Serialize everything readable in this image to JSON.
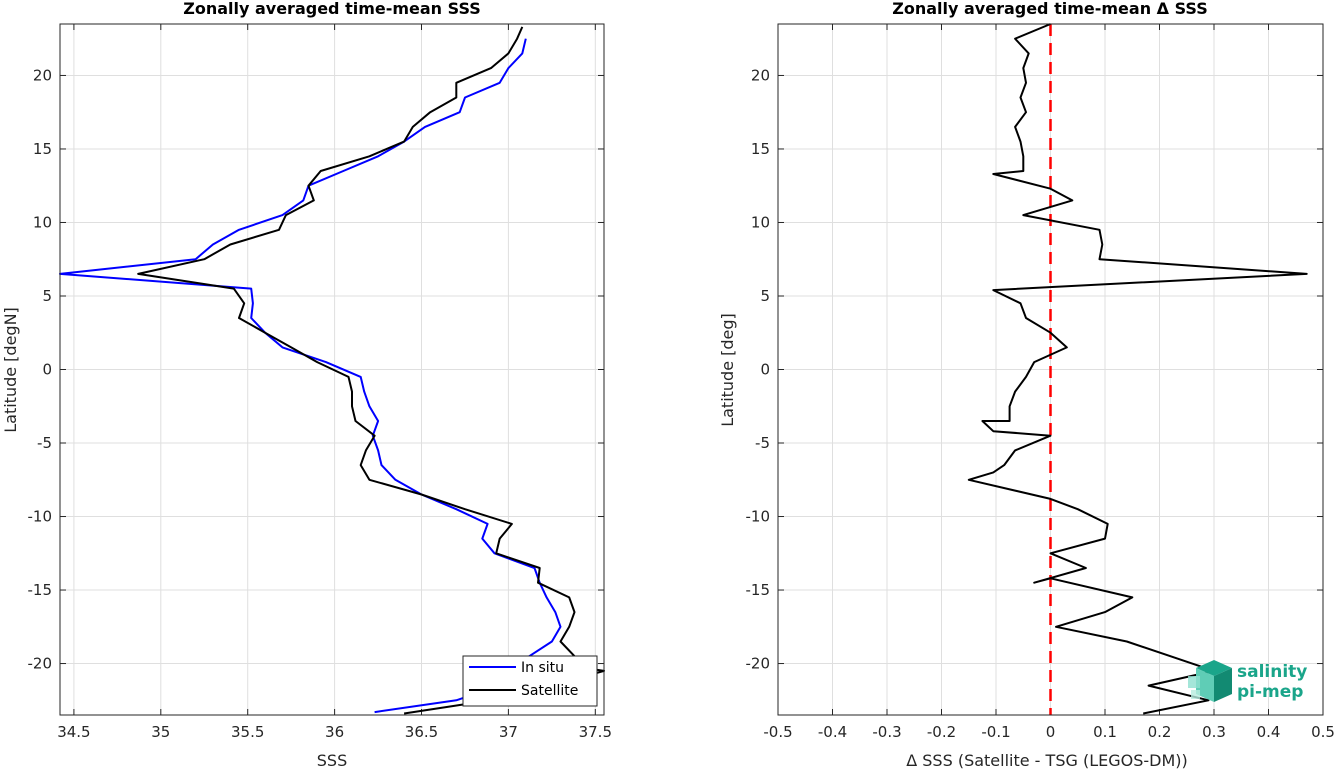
{
  "chart_data": [
    {
      "type": "line",
      "title": "Zonally averaged time-mean SSS",
      "xlabel": "SSS",
      "ylabel": "Latitude [degN]",
      "xlim": [
        34.42,
        37.55
      ],
      "ylim": [
        -23.5,
        23.5
      ],
      "xticks": [
        34.5,
        35,
        35.5,
        36,
        36.5,
        37,
        37.5
      ],
      "xtick_labels": [
        "34.5",
        "35",
        "35.5",
        "36",
        "36.5",
        "37",
        "37.5"
      ],
      "yticks": [
        -20,
        -15,
        -10,
        -5,
        0,
        5,
        10,
        15,
        20
      ],
      "ytick_labels": [
        "-20",
        "-15",
        "-10",
        "-5",
        "0",
        "5",
        "10",
        "15",
        "20"
      ],
      "grid": true,
      "legend_position": "bottom-right",
      "series": [
        {
          "name": "In situ",
          "color": "#0000ff",
          "points": [
            [
              37.1,
              22.5
            ],
            [
              37.08,
              21.5
            ],
            [
              37.0,
              20.5
            ],
            [
              36.95,
              19.5
            ],
            [
              36.75,
              18.5
            ],
            [
              36.72,
              17.5
            ],
            [
              36.52,
              16.5
            ],
            [
              36.4,
              15.5
            ],
            [
              36.25,
              14.5
            ],
            [
              36.05,
              13.5
            ],
            [
              35.85,
              12.5
            ],
            [
              35.82,
              11.5
            ],
            [
              35.7,
              10.5
            ],
            [
              35.45,
              9.5
            ],
            [
              35.3,
              8.5
            ],
            [
              35.2,
              7.5
            ],
            [
              34.42,
              6.5
            ],
            [
              35.52,
              5.5
            ],
            [
              35.53,
              4.5
            ],
            [
              35.52,
              3.5
            ],
            [
              35.6,
              2.5
            ],
            [
              35.7,
              1.5
            ],
            [
              35.95,
              0.5
            ],
            [
              36.15,
              -0.5
            ],
            [
              36.17,
              -1.5
            ],
            [
              36.2,
              -2.5
            ],
            [
              36.25,
              -3.5
            ],
            [
              36.22,
              -4.5
            ],
            [
              36.25,
              -5.5
            ],
            [
              36.27,
              -6.5
            ],
            [
              36.35,
              -7.5
            ],
            [
              36.5,
              -8.5
            ],
            [
              36.7,
              -9.5
            ],
            [
              36.88,
              -10.5
            ],
            [
              36.85,
              -11.5
            ],
            [
              36.92,
              -12.5
            ],
            [
              37.15,
              -13.5
            ],
            [
              37.18,
              -14.5
            ],
            [
              37.22,
              -15.5
            ],
            [
              37.27,
              -16.5
            ],
            [
              37.3,
              -17.5
            ],
            [
              37.25,
              -18.5
            ],
            [
              37.12,
              -19.5
            ],
            [
              36.95,
              -20.5
            ],
            [
              36.95,
              -21.5
            ],
            [
              36.7,
              -22.5
            ],
            [
              36.23,
              -23.3
            ]
          ]
        },
        {
          "name": "Satellite",
          "color": "#000000",
          "points": [
            [
              37.08,
              23.3
            ],
            [
              37.05,
              22.5
            ],
            [
              37.0,
              21.5
            ],
            [
              36.9,
              20.5
            ],
            [
              36.7,
              19.5
            ],
            [
              36.7,
              18.5
            ],
            [
              36.55,
              17.5
            ],
            [
              36.45,
              16.5
            ],
            [
              36.4,
              15.5
            ],
            [
              36.2,
              14.5
            ],
            [
              35.92,
              13.5
            ],
            [
              35.85,
              12.5
            ],
            [
              35.88,
              11.5
            ],
            [
              35.72,
              10.5
            ],
            [
              35.68,
              9.5
            ],
            [
              35.4,
              8.5
            ],
            [
              35.25,
              7.5
            ],
            [
              34.87,
              6.5
            ],
            [
              35.42,
              5.5
            ],
            [
              35.48,
              4.5
            ],
            [
              35.45,
              3.5
            ],
            [
              35.6,
              2.5
            ],
            [
              35.75,
              1.5
            ],
            [
              35.9,
              0.5
            ],
            [
              36.08,
              -0.5
            ],
            [
              36.1,
              -1.5
            ],
            [
              36.1,
              -2.5
            ],
            [
              36.12,
              -3.5
            ],
            [
              36.23,
              -4.5
            ],
            [
              36.18,
              -5.5
            ],
            [
              36.15,
              -6.5
            ],
            [
              36.2,
              -7.5
            ],
            [
              36.5,
              -8.5
            ],
            [
              36.75,
              -9.5
            ],
            [
              37.02,
              -10.5
            ],
            [
              36.95,
              -11.5
            ],
            [
              36.93,
              -12.5
            ],
            [
              37.18,
              -13.5
            ],
            [
              37.17,
              -14.5
            ],
            [
              37.35,
              -15.5
            ],
            [
              37.38,
              -16.5
            ],
            [
              37.35,
              -17.5
            ],
            [
              37.3,
              -18.5
            ],
            [
              37.38,
              -19.5
            ],
            [
              37.38,
              -20.2
            ],
            [
              37.55,
              -20.5
            ],
            [
              37.4,
              -21.0
            ],
            [
              36.9,
              -22.5
            ],
            [
              36.4,
              -23.4
            ]
          ]
        }
      ]
    },
    {
      "type": "line",
      "title": "Zonally averaged time-mean Δ SSS",
      "xlabel": "Δ SSS (Satellite - TSG (LEGOS-DM))",
      "ylabel": "Latitude [deg]",
      "xlim": [
        -0.5,
        0.5
      ],
      "ylim": [
        -23.5,
        23.5
      ],
      "xticks": [
        -0.5,
        -0.4,
        -0.3,
        -0.2,
        -0.1,
        0,
        0.1,
        0.2,
        0.3,
        0.4,
        0.5
      ],
      "xtick_labels": [
        "-0.5",
        "-0.4",
        "-0.3",
        "-0.2",
        "-0.1",
        "0",
        "0.1",
        "0.2",
        "0.3",
        "0.4",
        "0.5"
      ],
      "yticks": [
        -20,
        -15,
        -10,
        -5,
        0,
        5,
        10,
        15,
        20
      ],
      "ytick_labels": [
        "-20",
        "-15",
        "-10",
        "-5",
        "0",
        "5",
        "10",
        "15",
        "20"
      ],
      "grid": true,
      "reference_line": {
        "x": 0,
        "color": "#ff0000",
        "style": "dashed"
      },
      "series": [
        {
          "color": "#000000",
          "points": [
            [
              0.0,
              23.5
            ],
            [
              -0.065,
              22.5
            ],
            [
              -0.04,
              21.5
            ],
            [
              -0.05,
              20.5
            ],
            [
              -0.045,
              19.5
            ],
            [
              -0.055,
              18.5
            ],
            [
              -0.045,
              17.5
            ],
            [
              -0.065,
              16.5
            ],
            [
              -0.055,
              15.5
            ],
            [
              -0.05,
              14.5
            ],
            [
              -0.05,
              13.5
            ],
            [
              -0.105,
              13.3
            ],
            [
              0.0,
              12.3
            ],
            [
              0.04,
              11.5
            ],
            [
              -0.05,
              10.5
            ],
            [
              0.09,
              9.5
            ],
            [
              0.095,
              8.5
            ],
            [
              0.09,
              7.5
            ],
            [
              0.47,
              6.5
            ],
            [
              -0.105,
              5.4
            ],
            [
              -0.055,
              4.5
            ],
            [
              -0.045,
              3.5
            ],
            [
              0.0,
              2.5
            ],
            [
              0.03,
              1.5
            ],
            [
              -0.03,
              0.5
            ],
            [
              -0.045,
              -0.5
            ],
            [
              -0.065,
              -1.5
            ],
            [
              -0.075,
              -2.5
            ],
            [
              -0.075,
              -3.5
            ],
            [
              -0.125,
              -3.5
            ],
            [
              -0.105,
              -4.2
            ],
            [
              0.0,
              -4.5
            ],
            [
              -0.065,
              -5.5
            ],
            [
              -0.085,
              -6.5
            ],
            [
              -0.105,
              -7
            ],
            [
              -0.15,
              -7.5
            ],
            [
              0.0,
              -8.8
            ],
            [
              0.05,
              -9.5
            ],
            [
              0.105,
              -10.5
            ],
            [
              0.1,
              -11.5
            ],
            [
              0.0,
              -12.5
            ],
            [
              0.065,
              -13.5
            ],
            [
              -0.03,
              -14.5
            ],
            [
              0.0,
              -14.2
            ],
            [
              0.15,
              -15.5
            ],
            [
              0.1,
              -16.5
            ],
            [
              0.01,
              -17.5
            ],
            [
              0.14,
              -18.5
            ],
            [
              0.22,
              -19.5
            ],
            [
              0.3,
              -20.5
            ],
            [
              0.18,
              -21.5
            ],
            [
              0.29,
              -22.5
            ],
            [
              0.17,
              -23.4
            ]
          ]
        }
      ]
    }
  ],
  "logo": {
    "line1": "salinity",
    "line2": "pi-mep",
    "color": "#1aa58a"
  }
}
